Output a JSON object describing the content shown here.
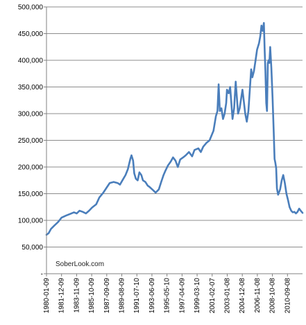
{
  "chart_data": {
    "type": "line",
    "title": "",
    "xlabel": "",
    "ylabel": "",
    "watermark": "SoberLook.com",
    "ylim": [
      0,
      500000
    ],
    "y_ticks": [
      {
        "value": 500000,
        "label": "500,000"
      },
      {
        "value": 450000,
        "label": "450,000"
      },
      {
        "value": 400000,
        "label": "400,000"
      },
      {
        "value": 350000,
        "label": "350,000"
      },
      {
        "value": 300000,
        "label": "300,000"
      },
      {
        "value": 250000,
        "label": "250,000"
      },
      {
        "value": 200000,
        "label": "200,000"
      },
      {
        "value": 150000,
        "label": "150,000"
      },
      {
        "value": 100000,
        "label": "100,000"
      },
      {
        "value": 50000,
        "label": "50,000"
      },
      {
        "value": 0,
        "label": "-"
      }
    ],
    "x_ticks": [
      "1980-01-09",
      "1981-12-09",
      "1983-11-09",
      "1985-10-09",
      "1987-09-09",
      "1989-08-09",
      "1991-07-10",
      "1993-06-09",
      "1995-05-10",
      "1997-04-09",
      "1999-03-10",
      "2001-02-07",
      "2003-01-08",
      "2004-12-08",
      "2006-11-08",
      "2008-10-08",
      "2010-09-08"
    ],
    "x_range": [
      1980.03,
      2012.33
    ],
    "grid": true,
    "line_color": "#4a7ebb",
    "series": [
      {
        "name": "",
        "points": [
          [
            1980.03,
            73000
          ],
          [
            1980.3,
            76000
          ],
          [
            1980.6,
            84000
          ],
          [
            1981.0,
            90000
          ],
          [
            1981.5,
            97000
          ],
          [
            1981.93,
            105000
          ],
          [
            1982.5,
            109000
          ],
          [
            1983.0,
            112000
          ],
          [
            1983.5,
            115000
          ],
          [
            1983.85,
            113000
          ],
          [
            1984.2,
            118000
          ],
          [
            1984.6,
            116000
          ],
          [
            1985.0,
            113000
          ],
          [
            1985.4,
            118000
          ],
          [
            1985.78,
            124000
          ],
          [
            1986.3,
            130000
          ],
          [
            1986.7,
            143000
          ],
          [
            1987.2,
            152000
          ],
          [
            1987.69,
            163000
          ],
          [
            1988.0,
            170000
          ],
          [
            1988.5,
            172000
          ],
          [
            1989.0,
            170000
          ],
          [
            1989.3,
            167000
          ],
          [
            1989.61,
            175000
          ],
          [
            1990.0,
            185000
          ],
          [
            1990.3,
            196000
          ],
          [
            1990.6,
            215000
          ],
          [
            1990.75,
            222000
          ],
          [
            1990.95,
            212000
          ],
          [
            1991.1,
            188000
          ],
          [
            1991.3,
            178000
          ],
          [
            1991.53,
            175000
          ],
          [
            1991.75,
            190000
          ],
          [
            1992.0,
            185000
          ],
          [
            1992.2,
            175000
          ],
          [
            1992.5,
            172000
          ],
          [
            1992.8,
            165000
          ],
          [
            1993.0,
            163000
          ],
          [
            1993.44,
            157000
          ],
          [
            1993.8,
            152000
          ],
          [
            1994.2,
            158000
          ],
          [
            1994.5,
            172000
          ],
          [
            1994.8,
            185000
          ],
          [
            1995.0,
            192000
          ],
          [
            1995.36,
            203000
          ],
          [
            1995.7,
            210000
          ],
          [
            1996.0,
            218000
          ],
          [
            1996.3,
            212000
          ],
          [
            1996.6,
            200000
          ],
          [
            1996.9,
            214000
          ],
          [
            1997.27,
            218000
          ],
          [
            1997.6,
            222000
          ],
          [
            1998.0,
            228000
          ],
          [
            1998.4,
            220000
          ],
          [
            1998.7,
            232000
          ],
          [
            1999.19,
            235000
          ],
          [
            1999.5,
            228000
          ],
          [
            1999.8,
            238000
          ],
          [
            2000.2,
            245000
          ],
          [
            2000.6,
            250000
          ],
          [
            2001.1,
            268000
          ],
          [
            2001.4,
            295000
          ],
          [
            2001.6,
            305000
          ],
          [
            2001.75,
            355000
          ],
          [
            2001.9,
            305000
          ],
          [
            2002.1,
            310000
          ],
          [
            2002.3,
            290000
          ],
          [
            2002.5,
            300000
          ],
          [
            2002.7,
            320000
          ],
          [
            2002.8,
            345000
          ],
          [
            2003.02,
            338000
          ],
          [
            2003.2,
            350000
          ],
          [
            2003.35,
            320000
          ],
          [
            2003.5,
            290000
          ],
          [
            2003.7,
            310000
          ],
          [
            2003.9,
            360000
          ],
          [
            2004.05,
            330000
          ],
          [
            2004.2,
            300000
          ],
          [
            2004.4,
            310000
          ],
          [
            2004.6,
            330000
          ],
          [
            2004.75,
            345000
          ],
          [
            2004.93,
            322000
          ],
          [
            2005.1,
            300000
          ],
          [
            2005.3,
            285000
          ],
          [
            2005.5,
            305000
          ],
          [
            2005.7,
            350000
          ],
          [
            2005.85,
            383000
          ],
          [
            2006.0,
            368000
          ],
          [
            2006.2,
            380000
          ],
          [
            2006.4,
            400000
          ],
          [
            2006.6,
            420000
          ],
          [
            2006.84,
            432000
          ],
          [
            2007.0,
            445000
          ],
          [
            2007.15,
            465000
          ],
          [
            2007.3,
            455000
          ],
          [
            2007.45,
            470000
          ],
          [
            2007.55,
            420000
          ],
          [
            2007.65,
            380000
          ],
          [
            2007.75,
            320000
          ],
          [
            2007.85,
            305000
          ],
          [
            2007.95,
            395000
          ],
          [
            2008.05,
            400000
          ],
          [
            2008.15,
            395000
          ],
          [
            2008.25,
            425000
          ],
          [
            2008.4,
            385000
          ],
          [
            2008.55,
            330000
          ],
          [
            2008.7,
            265000
          ],
          [
            2008.8,
            215000
          ],
          [
            2008.9,
            208000
          ],
          [
            2009.0,
            198000
          ],
          [
            2009.1,
            160000
          ],
          [
            2009.25,
            148000
          ],
          [
            2009.5,
            158000
          ],
          [
            2009.7,
            175000
          ],
          [
            2009.9,
            185000
          ],
          [
            2010.1,
            170000
          ],
          [
            2010.3,
            150000
          ],
          [
            2010.5,
            138000
          ],
          [
            2010.69,
            125000
          ],
          [
            2010.9,
            118000
          ],
          [
            2011.1,
            115000
          ],
          [
            2011.3,
            116000
          ],
          [
            2011.5,
            113000
          ],
          [
            2011.7,
            116000
          ],
          [
            2011.9,
            122000
          ],
          [
            2012.1,
            118000
          ],
          [
            2012.33,
            114000
          ]
        ]
      }
    ]
  }
}
